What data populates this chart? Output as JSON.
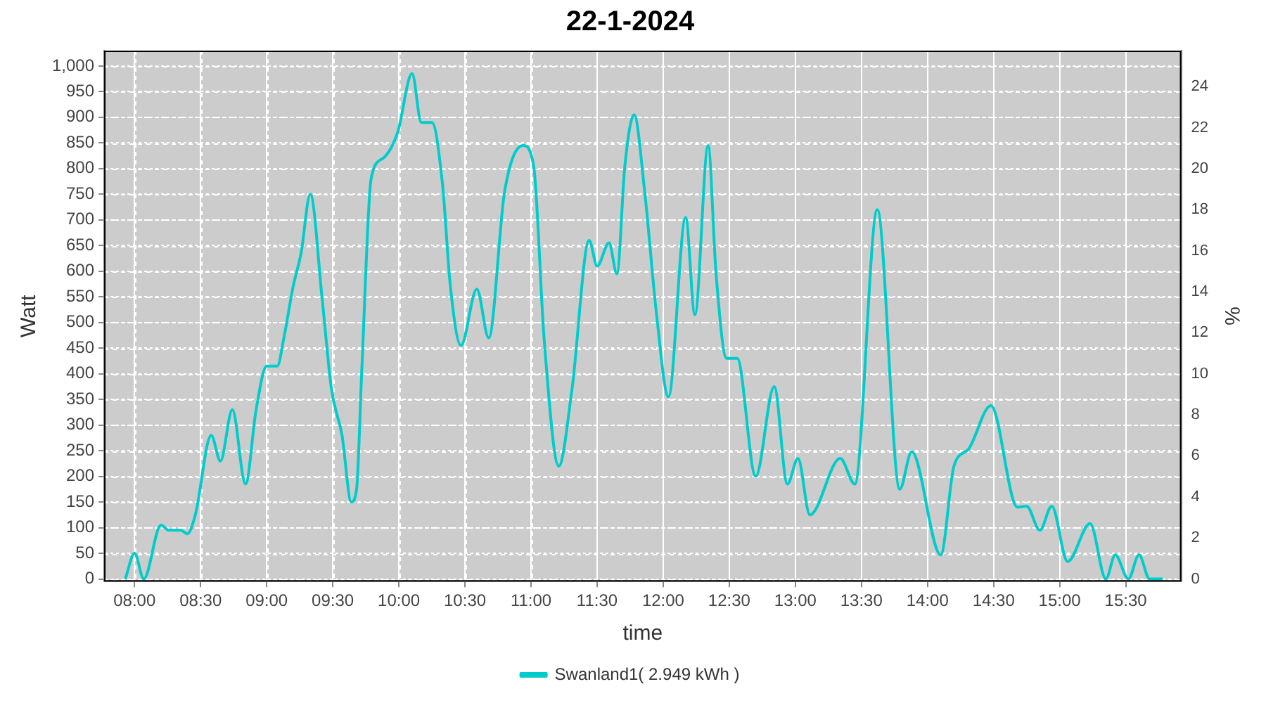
{
  "chart_data": {
    "type": "line",
    "title": "22-1-2024",
    "xlabel": "time",
    "ylabel": "Watt",
    "y2label": "%",
    "xlim": [
      7.77,
      15.92
    ],
    "xticks": [
      {
        "value": 8,
        "label": "08:00"
      },
      {
        "value": 8.5,
        "label": "08:30"
      },
      {
        "value": 9,
        "label": "09:00"
      },
      {
        "value": 9.5,
        "label": "09:30"
      },
      {
        "value": 10,
        "label": "10:00"
      },
      {
        "value": 10.5,
        "label": "10:30"
      },
      {
        "value": 11,
        "label": "11:00"
      },
      {
        "value": 11.5,
        "label": "11:30"
      },
      {
        "value": 12,
        "label": "12:00"
      },
      {
        "value": 12.5,
        "label": "12:30"
      },
      {
        "value": 13,
        "label": "13:00"
      },
      {
        "value": 13.5,
        "label": "13:30"
      },
      {
        "value": 14,
        "label": "14:00"
      },
      {
        "value": 14.5,
        "label": "14:30"
      },
      {
        "value": 15,
        "label": "15:00"
      },
      {
        "value": 15.5,
        "label": "15:30"
      }
    ],
    "ylim": [
      -5,
      1030
    ],
    "yticks": [
      0,
      50,
      100,
      150,
      200,
      250,
      300,
      350,
      400,
      450,
      500,
      550,
      600,
      650,
      700,
      750,
      800,
      850,
      900,
      950,
      {
        "value": 1000,
        "label": "1,000"
      }
    ],
    "y2lim": [
      -0.125,
      25.75
    ],
    "y2ticks": [
      0,
      2,
      4,
      6,
      8,
      10,
      12,
      14,
      16,
      18,
      20,
      22,
      24
    ],
    "grid": true,
    "legend": "bottom",
    "marker": "none",
    "line_style": "solid",
    "series": [
      {
        "name": "Swanland1( 2.949 kWh )",
        "color": "#00cccc",
        "x": [
          7.93,
          8.0,
          8.07,
          8.2,
          8.26,
          8.35,
          8.4,
          8.46,
          8.58,
          8.65,
          8.74,
          8.84,
          8.92,
          9.0,
          9.08,
          9.13,
          9.2,
          9.26,
          9.33,
          9.42,
          9.49,
          9.57,
          9.64,
          9.68,
          9.72,
          9.79,
          9.88,
          9.99,
          10.1,
          10.17,
          10.25,
          10.33,
          10.39,
          10.47,
          10.59,
          10.68,
          10.8,
          10.94,
          11.02,
          11.1,
          11.21,
          11.31,
          11.44,
          11.5,
          11.59,
          11.65,
          11.71,
          11.78,
          11.86,
          11.95,
          12.04,
          12.17,
          12.24,
          12.34,
          12.4,
          12.48,
          12.56,
          12.7,
          12.84,
          12.94,
          13.02,
          13.11,
          13.34,
          13.45,
          13.62,
          13.79,
          13.88,
          14.1,
          14.2,
          14.31,
          14.48,
          14.68,
          14.75,
          14.85,
          14.94,
          15.06,
          15.23,
          15.35,
          15.42,
          15.52,
          15.6,
          15.68,
          15.78
        ],
        "values": [
          0,
          50,
          0,
          105,
          95,
          95,
          88,
          125,
          280,
          230,
          330,
          185,
          330,
          415,
          415,
          470,
          570,
          635,
          750,
          545,
          370,
          280,
          150,
          175,
          410,
          780,
          820,
          870,
          985,
          890,
          890,
          770,
          570,
          455,
          565,
          470,
          755,
          845,
          805,
          465,
          220,
          370,
          660,
          610,
          655,
          595,
          805,
          905,
          755,
          515,
          355,
          705,
          515,
          845,
          595,
          430,
          430,
          200,
          375,
          185,
          235,
          125,
          235,
          185,
          720,
          175,
          248,
          47,
          220,
          253,
          338,
          140,
          142,
          95,
          142,
          34,
          108,
          0,
          47,
          0,
          47,
          0,
          0
        ]
      }
    ]
  }
}
